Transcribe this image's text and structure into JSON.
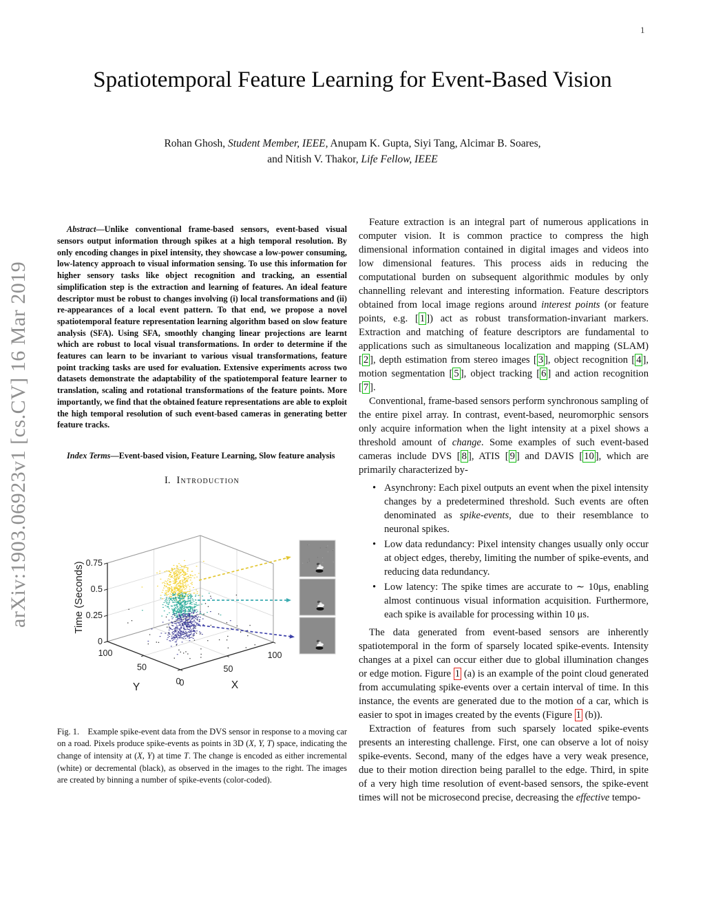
{
  "page_number": "1",
  "watermark": "arXiv:1903.06923v1  [cs.CV]  16 Mar 2019",
  "title": "Spatiotemporal Feature Learning for Event-Based Vision",
  "authors": {
    "line1": [
      {
        "t": "Rohan Ghosh, "
      },
      {
        "t": "Student Member, IEEE,",
        "i": true
      },
      {
        "t": " Anupam K. Gupta, Siyi Tang, Alcimar B. Soares,"
      }
    ],
    "line2": [
      {
        "t": "and Nitish V. Thakor, "
      },
      {
        "t": "Life Fellow, IEEE",
        "i": true
      }
    ]
  },
  "abstract": [
    {
      "t": "Abstract",
      "i": true
    },
    {
      "t": "—Unlike conventional frame-based sensors, event-based visual sensors output information through spikes at a high temporal resolution. By only encoding changes in pixel intensity, they showcase a low-power consuming, low-latency approach to visual information sensing. To use this information for higher sensory tasks like object recognition and tracking, an essential simplification step is the extraction and learning of features. An ideal feature descriptor must be robust to changes involving (i) local transformations and (ii) re-appearances of a local event pattern. To that end, we propose a novel spatiotemporal feature representation learning algorithm based on slow feature analysis (SFA). Using SFA, smoothly changing linear projections are learnt which are robust to local visual transformations. In order to determine if the features can learn to be invariant to various visual transformations, feature point tracking tasks are used for evaluation. Extensive experiments across two datasets demonstrate the adaptability of the spatiotemporal feature learner to translation, scaling and rotational transformations of the feature points. More importantly, we find that the obtained feature representations are able to exploit the high temporal resolution of such event-based cameras in generating better feature tracks."
    }
  ],
  "index_terms": [
    {
      "t": "Index Terms",
      "i": true
    },
    {
      "t": "—Event-based vision, Feature Learning, Slow feature analysis"
    }
  ],
  "section1": {
    "num": "I.",
    "name": "Introduction"
  },
  "intro": {
    "p1": [
      {
        "t": "Feature extraction is an integral part of numerous applications in computer vision. It is common practice to compress the high dimensional information contained in digital images and videos into low dimensional features. This process aids in reducing the computational burden on subsequent algorithmic modules by only channelling relevant and interesting information. Feature descriptors obtained from local image regions around "
      },
      {
        "t": "interest points",
        "i": true
      },
      {
        "t": " (or feature points, e.g. ["
      },
      {
        "t": "1",
        "cite": true
      },
      {
        "t": "]) act as robust transformation-invariant markers. Extraction and matching of feature descriptors are fundamental to applications such as simultaneous localization and mapping (SLAM) ["
      },
      {
        "t": "2",
        "cite": true
      },
      {
        "t": "], depth estimation from stereo images ["
      },
      {
        "t": "3",
        "cite": true
      },
      {
        "t": "], object recognition ["
      },
      {
        "t": "4",
        "cite": true
      },
      {
        "t": "], motion segmentation ["
      },
      {
        "t": "5",
        "cite": true
      },
      {
        "t": "], object tracking ["
      },
      {
        "t": "6",
        "cite": true
      },
      {
        "t": "] and action recognition ["
      },
      {
        "t": "7",
        "cite": true
      },
      {
        "t": "]."
      }
    ],
    "p2": [
      {
        "t": "Conventional, frame-based sensors perform synchronous sampling of the entire pixel array. In contrast, event-based, neuromorphic sensors only acquire information when the light intensity at a pixel shows a threshold amount of "
      },
      {
        "t": "change",
        "i": true
      },
      {
        "t": ". Some examples of such event-based cameras include DVS ["
      },
      {
        "t": "8",
        "cite": true
      },
      {
        "t": "], ATIS ["
      },
      {
        "t": "9",
        "cite": true
      },
      {
        "t": "] and DAVIS ["
      },
      {
        "t": "10",
        "cite": true
      },
      {
        "t": "], which are primarily characterized by-"
      }
    ],
    "bullets": [
      [
        {
          "t": "Asynchrony: Each pixel outputs an event when the pixel intensity changes by a predetermined threshold. Such events are often denominated as "
        },
        {
          "t": "spike-events",
          "i": true
        },
        {
          "t": ", due to their resemblance to neuronal spikes."
        }
      ],
      [
        {
          "t": "Low data redundancy: Pixel intensity changes usually only occur at object edges, thereby, limiting the number of spike-events, and reducing data redundancy."
        }
      ],
      [
        {
          "t": "Low latency: The spike times are accurate to ∼ 10μs, enabling almost continuous visual information acquisition. Furthermore, each spike is available for processing within 10 μs."
        }
      ]
    ],
    "p3": [
      {
        "t": "The data generated from event-based sensors are inherently spatiotemporal in the form of sparsely located spike-events. Intensity changes at a pixel can occur either due to global illumination changes or edge motion. Figure "
      },
      {
        "t": "1",
        "ref": true
      },
      {
        "t": " (a) is an example of the point cloud generated from accumulating spike-events over a certain interval of time. In this instance, the events are generated due to the motion of a car, which is easier to spot in images created by the events (Figure "
      },
      {
        "t": "1",
        "ref": true
      },
      {
        "t": " (b))."
      }
    ],
    "p4": [
      {
        "t": "Extraction of features from such sparsely located spike-events presents an interesting challenge. First, one can observe a lot of noisy spike-events. Second, many of the edges have a very weak presence, due to their motion direction being parallel to the edge. Third, in spite of a very high time resolution of event-based sensors, the spike-event times will not be microsecond precise, decreasing the "
      },
      {
        "t": "effective",
        "i": true
      },
      {
        "t": " tempo-"
      }
    ]
  },
  "figure_caption": [
    {
      "t": "Fig. 1. Example spike-event data from the DVS sensor in response to a moving car on a road. Pixels produce spike-events as points in 3D ("
    },
    {
      "t": "X, Y, T",
      "i": true
    },
    {
      "t": ") space, indicating the change of intensity at ("
    },
    {
      "t": "X, Y",
      "i": true
    },
    {
      "t": ") at time "
    },
    {
      "t": "T",
      "i": true
    },
    {
      "t": ". The change is encoded as either incremental (white) or decremental (black), as observed in the images to the right. The images are created by binning a number of spike-events (color-coded)."
    }
  ],
  "chart_data": {
    "type": "scatter",
    "projection": "3d",
    "title": "",
    "xlabel": "X",
    "ylabel": "Y",
    "zlabel": "Time (Seconds)",
    "x_ticks": [
      0,
      50,
      100
    ],
    "y_ticks": [
      0,
      50,
      100
    ],
    "t_ticks": [
      0,
      0.25,
      0.5,
      0.75
    ],
    "xlim": [
      0,
      100
    ],
    "ylim": [
      0,
      100
    ],
    "tlim": [
      0,
      0.75
    ],
    "grid": true,
    "description": "Spike-event point cloud of a moving car: three time-binned clusters (color-coded) stacked along the time axis, each linked by a dashed arrow to a binned grayscale event image of the car.",
    "clusters": [
      {
        "name": "bin t≈0.45–0.70 s",
        "color": "#f2d12e",
        "x_center": 47,
        "y_center": 60,
        "x_spread": 14,
        "y_spread": 12,
        "t_range": [
          0.44,
          0.7
        ],
        "n": 420
      },
      {
        "name": "bin t≈0.22–0.46 s",
        "color": "#2cab9a",
        "x_center": 46,
        "y_center": 60,
        "x_spread": 14,
        "y_spread": 12,
        "t_range": [
          0.22,
          0.46
        ],
        "n": 430
      },
      {
        "name": "bin t≈0.00–0.24 s",
        "color": "#3c3a96",
        "x_center": 47,
        "y_center": 58,
        "x_spread": 14,
        "y_spread": 12,
        "t_range": [
          0.01,
          0.24
        ],
        "n": 430
      }
    ],
    "noise": {
      "n": 60,
      "color": "#333333"
    },
    "arrow_colors": [
      "#e2c52f",
      "#3aabb0",
      "#3b3fa8"
    ],
    "frames": [
      {
        "label": "event image bin 3 (top, yellow)",
        "noisy": true
      },
      {
        "label": "event image bin 2 (middle, teal)",
        "noisy": false
      },
      {
        "label": "event image bin 1 (bottom, navy)",
        "noisy": false
      }
    ],
    "frame_fill": "#8b8b8b",
    "grid_color": "#d7d7d7",
    "axis_color": "#2b2b2b",
    "box_color": "#9a9a9a"
  }
}
